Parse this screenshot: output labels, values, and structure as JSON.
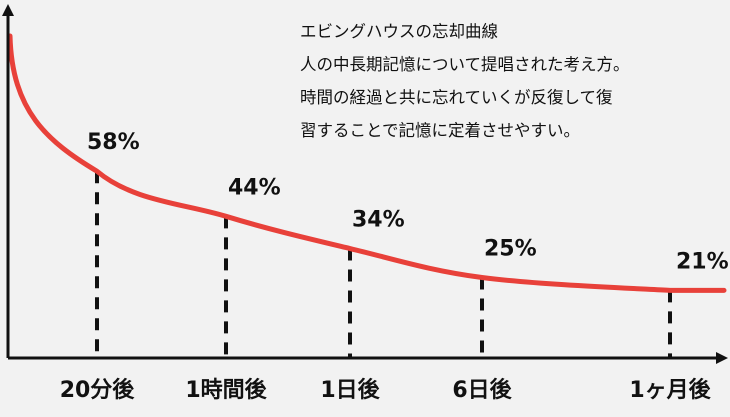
{
  "description": {
    "lines": [
      "エビングハウスの忘却曲線",
      "人の中長期記憶について提唱された考え方。",
      "時間の経過と共に忘れていくが反復して復",
      "習することで記憶に定着させやすい。"
    ]
  },
  "colors": {
    "curve": "#e8413a",
    "axis": "#111111",
    "background": "#f2f2f2"
  },
  "chart_data": {
    "type": "line",
    "title": "エビングハウスの忘却曲線",
    "categories": [
      "20分後",
      "1時間後",
      "1日後",
      "6日後",
      "1ヶ月後"
    ],
    "values": [
      58,
      44,
      34,
      25,
      21
    ],
    "value_labels": [
      "58%",
      "44%",
      "34%",
      "25%",
      "21%"
    ],
    "start_value": 100,
    "ylim": [
      0,
      100
    ],
    "grid": false,
    "legend": "none"
  }
}
